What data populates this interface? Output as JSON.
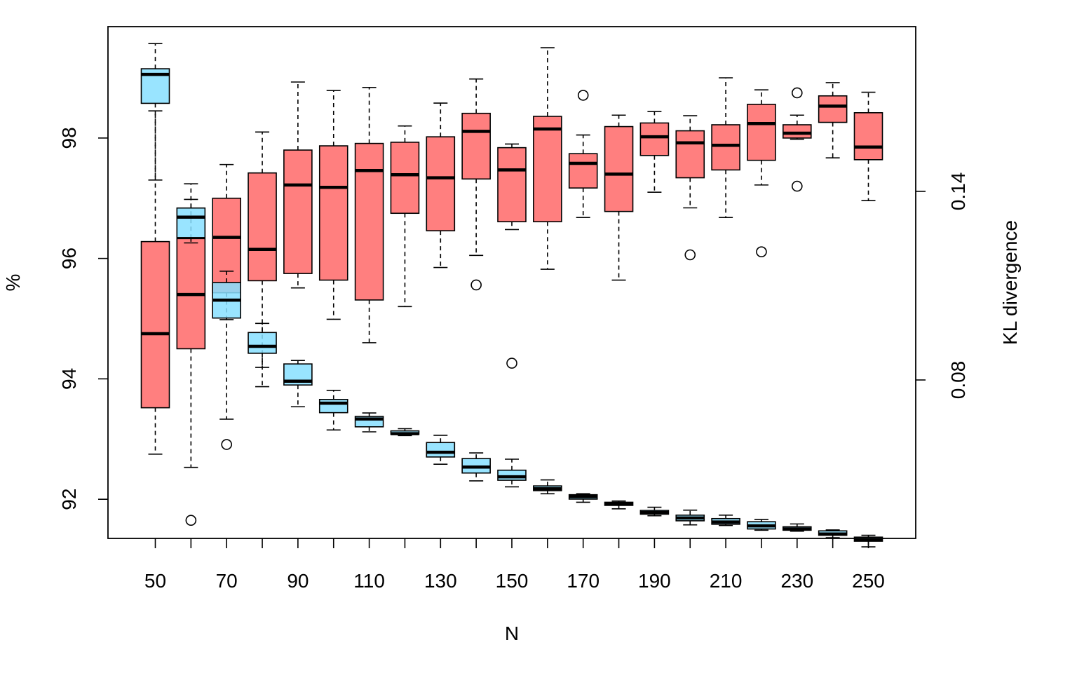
{
  "chart_data": {
    "type": "boxplot",
    "xlabel": "N",
    "ylabel_left": "%",
    "ylabel_right": "KL divergence",
    "x_tick_labels": [
      "50",
      "70",
      "90",
      "110",
      "130",
      "150",
      "170",
      "190",
      "210",
      "230",
      "250"
    ],
    "y_left_ticks": [
      92,
      94,
      96,
      98
    ],
    "y_right_ticks": [
      0.08,
      0.14
    ],
    "y_left_range": [
      91.35,
      99.85
    ],
    "y_right_range": [
      0.0296,
      0.1924
    ],
    "grid": false,
    "legend": "none",
    "colors": {
      "percent_series": "#ff7f7f",
      "kl_series": "#87dfff",
      "overlap": "#8aa0b8"
    },
    "series": [
      {
        "axis": "left",
        "color": "#ff7f7f",
        "boxes": [
          {
            "x": 50,
            "whisker_low": 92.75,
            "q1": 93.52,
            "median": 94.75,
            "q3": 96.28,
            "whisker_high": 98.45,
            "outliers": []
          },
          {
            "x": 60,
            "whisker_low": 92.53,
            "q1": 94.5,
            "median": 95.4,
            "q3": 96.33,
            "whisker_high": 96.98,
            "outliers": [
              91.65
            ]
          },
          {
            "x": 70,
            "whisker_low": 93.33,
            "q1": 95.43,
            "median": 96.35,
            "q3": 97.0,
            "whisker_high": 97.56,
            "outliers": [
              92.91
            ]
          },
          {
            "x": 80,
            "whisker_low": 93.87,
            "q1": 95.63,
            "median": 96.15,
            "q3": 97.42,
            "whisker_high": 98.1,
            "outliers": []
          },
          {
            "x": 90,
            "whisker_low": 95.51,
            "q1": 95.75,
            "median": 97.22,
            "q3": 97.8,
            "whisker_high": 98.93,
            "outliers": []
          },
          {
            "x": 100,
            "whisker_low": 94.99,
            "q1": 95.64,
            "median": 97.18,
            "q3": 97.87,
            "whisker_high": 98.79,
            "outliers": []
          },
          {
            "x": 110,
            "whisker_low": 94.6,
            "q1": 95.31,
            "median": 97.46,
            "q3": 97.91,
            "whisker_high": 98.84,
            "outliers": []
          },
          {
            "x": 120,
            "whisker_low": 95.2,
            "q1": 96.75,
            "median": 97.39,
            "q3": 97.93,
            "whisker_high": 98.2,
            "outliers": []
          },
          {
            "x": 130,
            "whisker_low": 95.85,
            "q1": 96.46,
            "median": 97.34,
            "q3": 98.02,
            "whisker_high": 98.58,
            "outliers": []
          },
          {
            "x": 140,
            "whisker_low": 96.05,
            "q1": 97.32,
            "median": 98.11,
            "q3": 98.41,
            "whisker_high": 98.98,
            "outliers": [
              95.56
            ]
          },
          {
            "x": 150,
            "whisker_low": 96.48,
            "q1": 96.61,
            "median": 97.47,
            "q3": 97.84,
            "whisker_high": 97.9,
            "outliers": [
              94.26
            ]
          },
          {
            "x": 160,
            "whisker_low": 95.82,
            "q1": 96.61,
            "median": 98.15,
            "q3": 98.36,
            "whisker_high": 99.5,
            "outliers": []
          },
          {
            "x": 170,
            "whisker_low": 96.68,
            "q1": 97.17,
            "median": 97.58,
            "q3": 97.74,
            "whisker_high": 98.05,
            "outliers": [
              98.71
            ]
          },
          {
            "x": 180,
            "whisker_low": 95.64,
            "q1": 96.78,
            "median": 97.4,
            "q3": 98.19,
            "whisker_high": 98.38,
            "outliers": []
          },
          {
            "x": 190,
            "whisker_low": 97.1,
            "q1": 97.71,
            "median": 98.02,
            "q3": 98.25,
            "whisker_high": 98.44,
            "outliers": []
          },
          {
            "x": 200,
            "whisker_low": 96.84,
            "q1": 97.34,
            "median": 97.92,
            "q3": 98.12,
            "whisker_high": 98.37,
            "outliers": [
              96.06
            ]
          },
          {
            "x": 210,
            "whisker_low": 96.68,
            "q1": 97.47,
            "median": 97.88,
            "q3": 98.22,
            "whisker_high": 99.0,
            "outliers": []
          },
          {
            "x": 220,
            "whisker_low": 97.22,
            "q1": 97.63,
            "median": 98.24,
            "q3": 98.56,
            "whisker_high": 98.8,
            "outliers": [
              96.11
            ]
          },
          {
            "x": 230,
            "whisker_low": 97.98,
            "q1": 98.0,
            "median": 98.08,
            "q3": 98.22,
            "whisker_high": 98.38,
            "outliers": [
              98.75,
              97.2
            ]
          },
          {
            "x": 240,
            "whisker_low": 97.67,
            "q1": 98.26,
            "median": 98.53,
            "q3": 98.7,
            "whisker_high": 98.92,
            "outliers": []
          },
          {
            "x": 250,
            "whisker_low": 96.96,
            "q1": 97.64,
            "median": 97.85,
            "q3": 98.42,
            "whisker_high": 98.76,
            "outliers": []
          }
        ]
      },
      {
        "axis": "right",
        "color": "#87dfff",
        "boxes": [
          {
            "x": 50,
            "whisker_low": 0.1436,
            "q1": 0.168,
            "median": 0.1772,
            "q3": 0.179,
            "whisker_high": 0.187,
            "outliers": []
          },
          {
            "x": 60,
            "whisker_low": 0.1236,
            "q1": 0.1253,
            "median": 0.1318,
            "q3": 0.1347,
            "whisker_high": 0.1424,
            "outliers": []
          },
          {
            "x": 70,
            "whisker_low": 0.0992,
            "q1": 0.0997,
            "median": 0.1054,
            "q3": 0.111,
            "whisker_high": 0.1146,
            "outliers": []
          },
          {
            "x": 80,
            "whisker_low": 0.084,
            "q1": 0.0885,
            "median": 0.0907,
            "q3": 0.0951,
            "whisker_high": 0.098,
            "outliers": []
          },
          {
            "x": 90,
            "whisker_low": 0.0715,
            "q1": 0.0784,
            "median": 0.0796,
            "q3": 0.0851,
            "whisker_high": 0.0862,
            "outliers": []
          },
          {
            "x": 100,
            "whisker_low": 0.0641,
            "q1": 0.0696,
            "median": 0.0726,
            "q3": 0.0738,
            "whisker_high": 0.0767,
            "outliers": []
          },
          {
            "x": 110,
            "whisker_low": 0.0635,
            "q1": 0.0651,
            "median": 0.0676,
            "q3": 0.0684,
            "whisker_high": 0.0695,
            "outliers": []
          },
          {
            "x": 120,
            "whisker_low": 0.0623,
            "q1": 0.0627,
            "median": 0.0629,
            "q3": 0.0638,
            "whisker_high": 0.0645,
            "outliers": []
          },
          {
            "x": 130,
            "whisker_low": 0.0532,
            "q1": 0.0555,
            "median": 0.057,
            "q3": 0.0601,
            "whisker_high": 0.0624,
            "outliers": []
          },
          {
            "x": 140,
            "whisker_low": 0.0479,
            "q1": 0.0504,
            "median": 0.0523,
            "q3": 0.055,
            "whisker_high": 0.0568,
            "outliers": []
          },
          {
            "x": 150,
            "whisker_low": 0.046,
            "q1": 0.0481,
            "median": 0.0492,
            "q3": 0.0513,
            "whisker_high": 0.0548,
            "outliers": []
          },
          {
            "x": 160,
            "whisker_low": 0.0438,
            "q1": 0.0448,
            "median": 0.0454,
            "q3": 0.0463,
            "whisker_high": 0.0482,
            "outliers": []
          },
          {
            "x": 170,
            "whisker_low": 0.0411,
            "q1": 0.0421,
            "median": 0.0429,
            "q3": 0.0435,
            "whisker_high": 0.0438,
            "outliers": []
          },
          {
            "x": 180,
            "whisker_low": 0.039,
            "q1": 0.0401,
            "median": 0.0406,
            "q3": 0.0411,
            "whisker_high": 0.0415,
            "outliers": []
          },
          {
            "x": 190,
            "whisker_low": 0.0368,
            "q1": 0.0373,
            "median": 0.0378,
            "q3": 0.0385,
            "whisker_high": 0.0395,
            "outliers": []
          },
          {
            "x": 200,
            "whisker_low": 0.0339,
            "q1": 0.0352,
            "median": 0.0361,
            "q3": 0.037,
            "whisker_high": 0.0386,
            "outliers": []
          },
          {
            "x": 210,
            "whisker_low": 0.0337,
            "q1": 0.0341,
            "median": 0.0348,
            "q3": 0.0359,
            "whisker_high": 0.037,
            "outliers": []
          },
          {
            "x": 220,
            "whisker_low": 0.0322,
            "q1": 0.0326,
            "median": 0.0336,
            "q3": 0.0349,
            "whisker_high": 0.0356,
            "outliers": []
          },
          {
            "x": 230,
            "whisker_low": 0.0319,
            "q1": 0.0322,
            "median": 0.0326,
            "q3": 0.0333,
            "whisker_high": 0.0342,
            "outliers": []
          },
          {
            "x": 240,
            "whisker_low": 0.0298,
            "q1": 0.0306,
            "median": 0.031,
            "q3": 0.032,
            "whisker_high": 0.0323,
            "outliers": []
          },
          {
            "x": 250,
            "whisker_low": 0.0269,
            "q1": 0.0287,
            "median": 0.0291,
            "q3": 0.03,
            "whisker_high": 0.0306,
            "outliers": []
          }
        ]
      }
    ]
  }
}
